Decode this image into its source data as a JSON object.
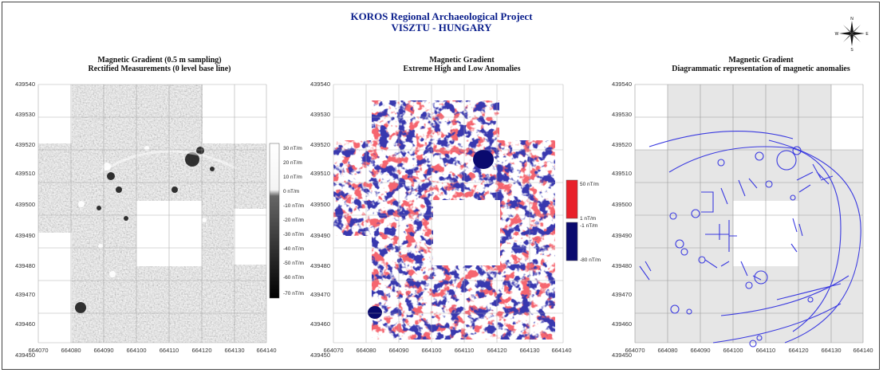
{
  "project": {
    "title": "KOROS Regional Archaeological Project",
    "subtitle": "VISZTU - HUNGARY"
  },
  "compass": {
    "n": "N",
    "s": "S",
    "e": "E",
    "w": "W",
    "icon": "compass-rose-icon"
  },
  "axes": {
    "x_ticks": [
      "664070",
      "664080",
      "664090",
      "664100",
      "664110",
      "664120",
      "664130",
      "664140"
    ],
    "y_ticks": [
      "439540",
      "439530",
      "439520",
      "439510",
      "439500",
      "439490",
      "439480",
      "439470",
      "439460",
      "439450"
    ]
  },
  "panels": [
    {
      "title_line1": "Magnetic Gradient (0.5 m sampling)",
      "title_line2": "Rectified Measurements (0 level base line)",
      "legend": [
        "30 nT/m",
        "20 nT/m",
        "10 nT/m",
        "0 nT/m",
        "-10 nT/m",
        "-20 nT/m",
        "-30 nT/m",
        "-40 nT/m",
        "-50 nT/m",
        "-60 nT/m",
        "-70 nT/m"
      ]
    },
    {
      "title_line1": "Magnetic Gradient",
      "title_line2": "Extreme High and Low Anomalies",
      "legend": [
        "50 nT/m",
        "1 nT/m",
        "-1 nT/m",
        "-80 nT/m"
      ],
      "colors": {
        "high": "#e8202a",
        "low": "#0a0a6e"
      }
    },
    {
      "title_line1": "Magnetic Gradient",
      "title_line2": "Diagrammatic representation of magnetic anomalies",
      "colors": {
        "lines": "#3a3ae0",
        "survey": "#e6e6e6"
      }
    }
  ]
}
